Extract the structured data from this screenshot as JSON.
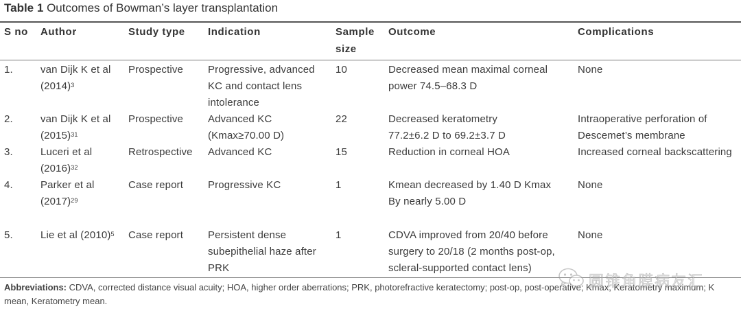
{
  "title": {
    "label": "Table 1",
    "text": "Outcomes of Bowman’s layer transplantation"
  },
  "headers": {
    "sno": "S no",
    "author": "Author",
    "study_type": "Study type",
    "indication": "Indication",
    "sample_size_1": "Sample",
    "sample_size_2": "size",
    "outcome": "Outcome",
    "complications": "Complications"
  },
  "rows": [
    {
      "sno": "1.",
      "author_1": "van Dijk K et al",
      "author_2": "(2014)",
      "ref": "3",
      "study_type": "Prospective",
      "indication": [
        "Progressive, advanced",
        "KC and contact lens",
        "intolerance"
      ],
      "sample_size": "10",
      "outcome": [
        "Decreased mean maximal corneal",
        "power 74.5–68.3 D"
      ],
      "complications": [
        "None"
      ]
    },
    {
      "sno": "2.",
      "author_1": "van Dijk K et al",
      "author_2": "(2015)",
      "ref": "31",
      "study_type": "Prospective",
      "indication": [
        "Advanced KC",
        "(Kmax≥70.00 D)"
      ],
      "sample_size": "22",
      "outcome": [
        "Decreased keratometry",
        "77.2±6.2 D to 69.2±3.7 D"
      ],
      "complications": [
        "Intraoperative perforation of",
        "Descemet’s membrane"
      ]
    },
    {
      "sno": "3.",
      "author_1": "Luceri et al",
      "author_2": "(2016)",
      "ref": "32",
      "study_type": "Retrospective",
      "indication": [
        "Advanced KC"
      ],
      "sample_size": "15",
      "outcome": [
        "Reduction in corneal HOA"
      ],
      "complications": [
        "Increased corneal backscattering"
      ]
    },
    {
      "sno": "4.",
      "author_1": "Parker et al",
      "author_2": "(2017)",
      "ref": "29",
      "study_type": "Case report",
      "indication": [
        "Progressive KC"
      ],
      "sample_size": "1",
      "outcome": [
        "Kmean decreased by 1.40 D Kmax",
        "By nearly 5.00 D"
      ],
      "complications": [
        "None"
      ]
    },
    {
      "sno": "5.",
      "author_1": "Lie et al (2010)",
      "ref": "5",
      "study_type": "Case report",
      "indication": [
        "Persistent dense",
        "subepithelial haze after",
        "PRK"
      ],
      "sample_size": "1",
      "outcome": [
        "CDVA improved from 20/40 before",
        "surgery to 20/18 (2 months post-op,",
        "scleral-supported contact lens)"
      ],
      "complications": [
        "None"
      ]
    }
  ],
  "footnote": {
    "label": "Abbreviations:",
    "text": "CDVA, corrected distance visual acuity; HOA, higher order aberrations; PRK, photorefractive keratectomy; post-op, post-operative; Kmax, Keratometry maximum; K mean, Keratometry mean."
  },
  "watermark": {
    "text": "圆锥角膜病友汇",
    "icon": "wechat-icon"
  }
}
